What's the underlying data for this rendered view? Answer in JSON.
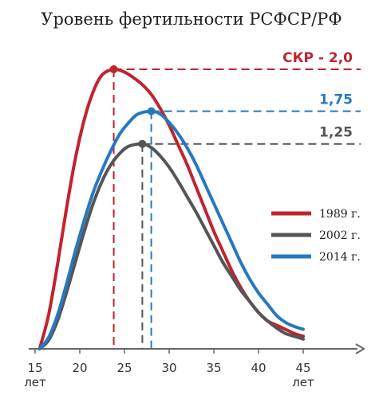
{
  "title": "Уровень фертильности РСФСР/РФ",
  "chart_data": {
    "type": "line",
    "x_ticks": [
      15,
      20,
      25,
      30,
      35,
      40,
      45
    ],
    "x_unit_label": "лет",
    "xlim": [
      15,
      45
    ],
    "grid": false,
    "legend": "right",
    "series": [
      {
        "name": "1989 г.",
        "color": "#c0242f",
        "peak": {
          "x": 23.8,
          "label": "СКР - 2,0"
        },
        "points": [
          [
            15.5,
            0
          ],
          [
            16.5,
            0.12
          ],
          [
            17.5,
            0.3
          ],
          [
            18.5,
            0.5
          ],
          [
            19.5,
            0.68
          ],
          [
            20.5,
            0.82
          ],
          [
            21.5,
            0.92
          ],
          [
            22.5,
            0.98
          ],
          [
            23.8,
            1.0
          ],
          [
            25,
            0.99
          ],
          [
            26,
            0.97
          ],
          [
            27,
            0.945
          ],
          [
            28,
            0.91
          ],
          [
            29,
            0.86
          ],
          [
            30,
            0.8
          ],
          [
            31,
            0.73
          ],
          [
            32,
            0.66
          ],
          [
            33,
            0.58
          ],
          [
            34,
            0.5
          ],
          [
            35,
            0.42
          ],
          [
            36,
            0.35
          ],
          [
            37,
            0.28
          ],
          [
            38,
            0.22
          ],
          [
            39,
            0.17
          ],
          [
            40,
            0.13
          ],
          [
            41,
            0.1
          ],
          [
            42,
            0.085
          ],
          [
            43,
            0.07
          ],
          [
            44,
            0.055
          ],
          [
            45,
            0.045
          ]
        ]
      },
      {
        "name": "2002 г.",
        "color": "#555555",
        "peak": {
          "x": 27.0,
          "label": "1,25"
        },
        "points": [
          [
            15.5,
            0
          ],
          [
            16.5,
            0.03
          ],
          [
            17.5,
            0.1
          ],
          [
            18.5,
            0.2
          ],
          [
            19.5,
            0.31
          ],
          [
            20.5,
            0.42
          ],
          [
            21.5,
            0.52
          ],
          [
            22.5,
            0.6
          ],
          [
            23.5,
            0.66
          ],
          [
            24.5,
            0.7
          ],
          [
            25.5,
            0.725
          ],
          [
            27,
            0.733
          ],
          [
            28,
            0.72
          ],
          [
            29,
            0.69
          ],
          [
            30,
            0.65
          ],
          [
            31,
            0.6
          ],
          [
            32,
            0.545
          ],
          [
            33,
            0.49
          ],
          [
            34,
            0.43
          ],
          [
            35,
            0.37
          ],
          [
            36,
            0.31
          ],
          [
            37,
            0.26
          ],
          [
            38,
            0.21
          ],
          [
            39,
            0.17
          ],
          [
            40,
            0.13
          ],
          [
            41,
            0.1
          ],
          [
            42,
            0.075
          ],
          [
            43,
            0.055
          ],
          [
            44,
            0.045
          ],
          [
            45,
            0.035
          ]
        ]
      },
      {
        "name": "2014 г.",
        "color": "#2479c1",
        "peak": {
          "x": 28.0,
          "label": "1,75"
        },
        "points": [
          [
            15.5,
            0
          ],
          [
            16.5,
            0.04
          ],
          [
            17.5,
            0.12
          ],
          [
            18.5,
            0.23
          ],
          [
            19.5,
            0.35
          ],
          [
            20.5,
            0.46
          ],
          [
            21.5,
            0.56
          ],
          [
            22.5,
            0.64
          ],
          [
            23.5,
            0.71
          ],
          [
            24.5,
            0.77
          ],
          [
            25.5,
            0.81
          ],
          [
            26.5,
            0.84
          ],
          [
            28,
            0.85
          ],
          [
            29,
            0.84
          ],
          [
            30,
            0.81
          ],
          [
            31,
            0.77
          ],
          [
            32,
            0.72
          ],
          [
            33,
            0.66
          ],
          [
            34,
            0.59
          ],
          [
            35,
            0.52
          ],
          [
            36,
            0.45
          ],
          [
            37,
            0.38
          ],
          [
            38,
            0.31
          ],
          [
            39,
            0.25
          ],
          [
            40,
            0.2
          ],
          [
            41,
            0.16
          ],
          [
            42,
            0.12
          ],
          [
            43,
            0.095
          ],
          [
            44,
            0.08
          ],
          [
            45,
            0.07
          ]
        ]
      }
    ]
  }
}
